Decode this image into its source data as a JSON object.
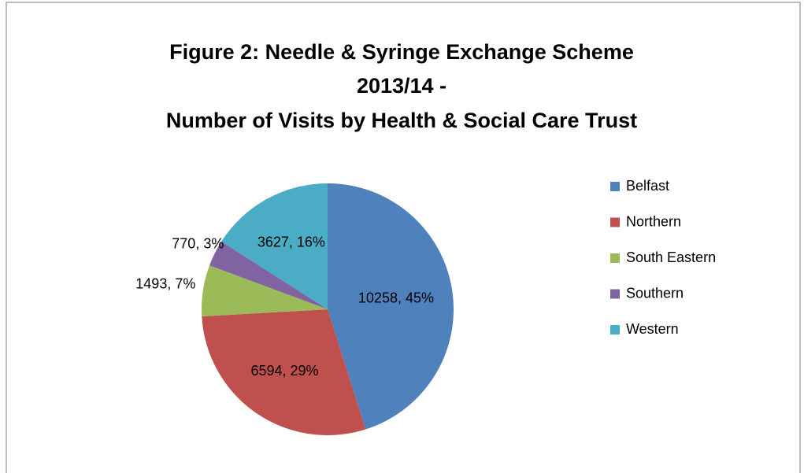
{
  "chart_data": {
    "type": "pie",
    "title": [
      "Figure 2: Needle & Syringe Exchange Scheme",
      "2013/14 -",
      "Number of Visits by Health & Social Care Trust"
    ],
    "categories": [
      "Belfast",
      "Northern",
      "South Eastern",
      "Southern",
      "Western"
    ],
    "values": [
      10258,
      6594,
      1493,
      770,
      3627
    ],
    "value_labels": [
      "10258, 45%",
      "6594, 29%",
      "1493, 7%",
      "770, 3%",
      "3627, 16%"
    ],
    "colors": [
      "#4f81bd",
      "#c0504d",
      "#9bbb59",
      "#8064a2",
      "#4bacc6"
    ],
    "legend": "right"
  }
}
